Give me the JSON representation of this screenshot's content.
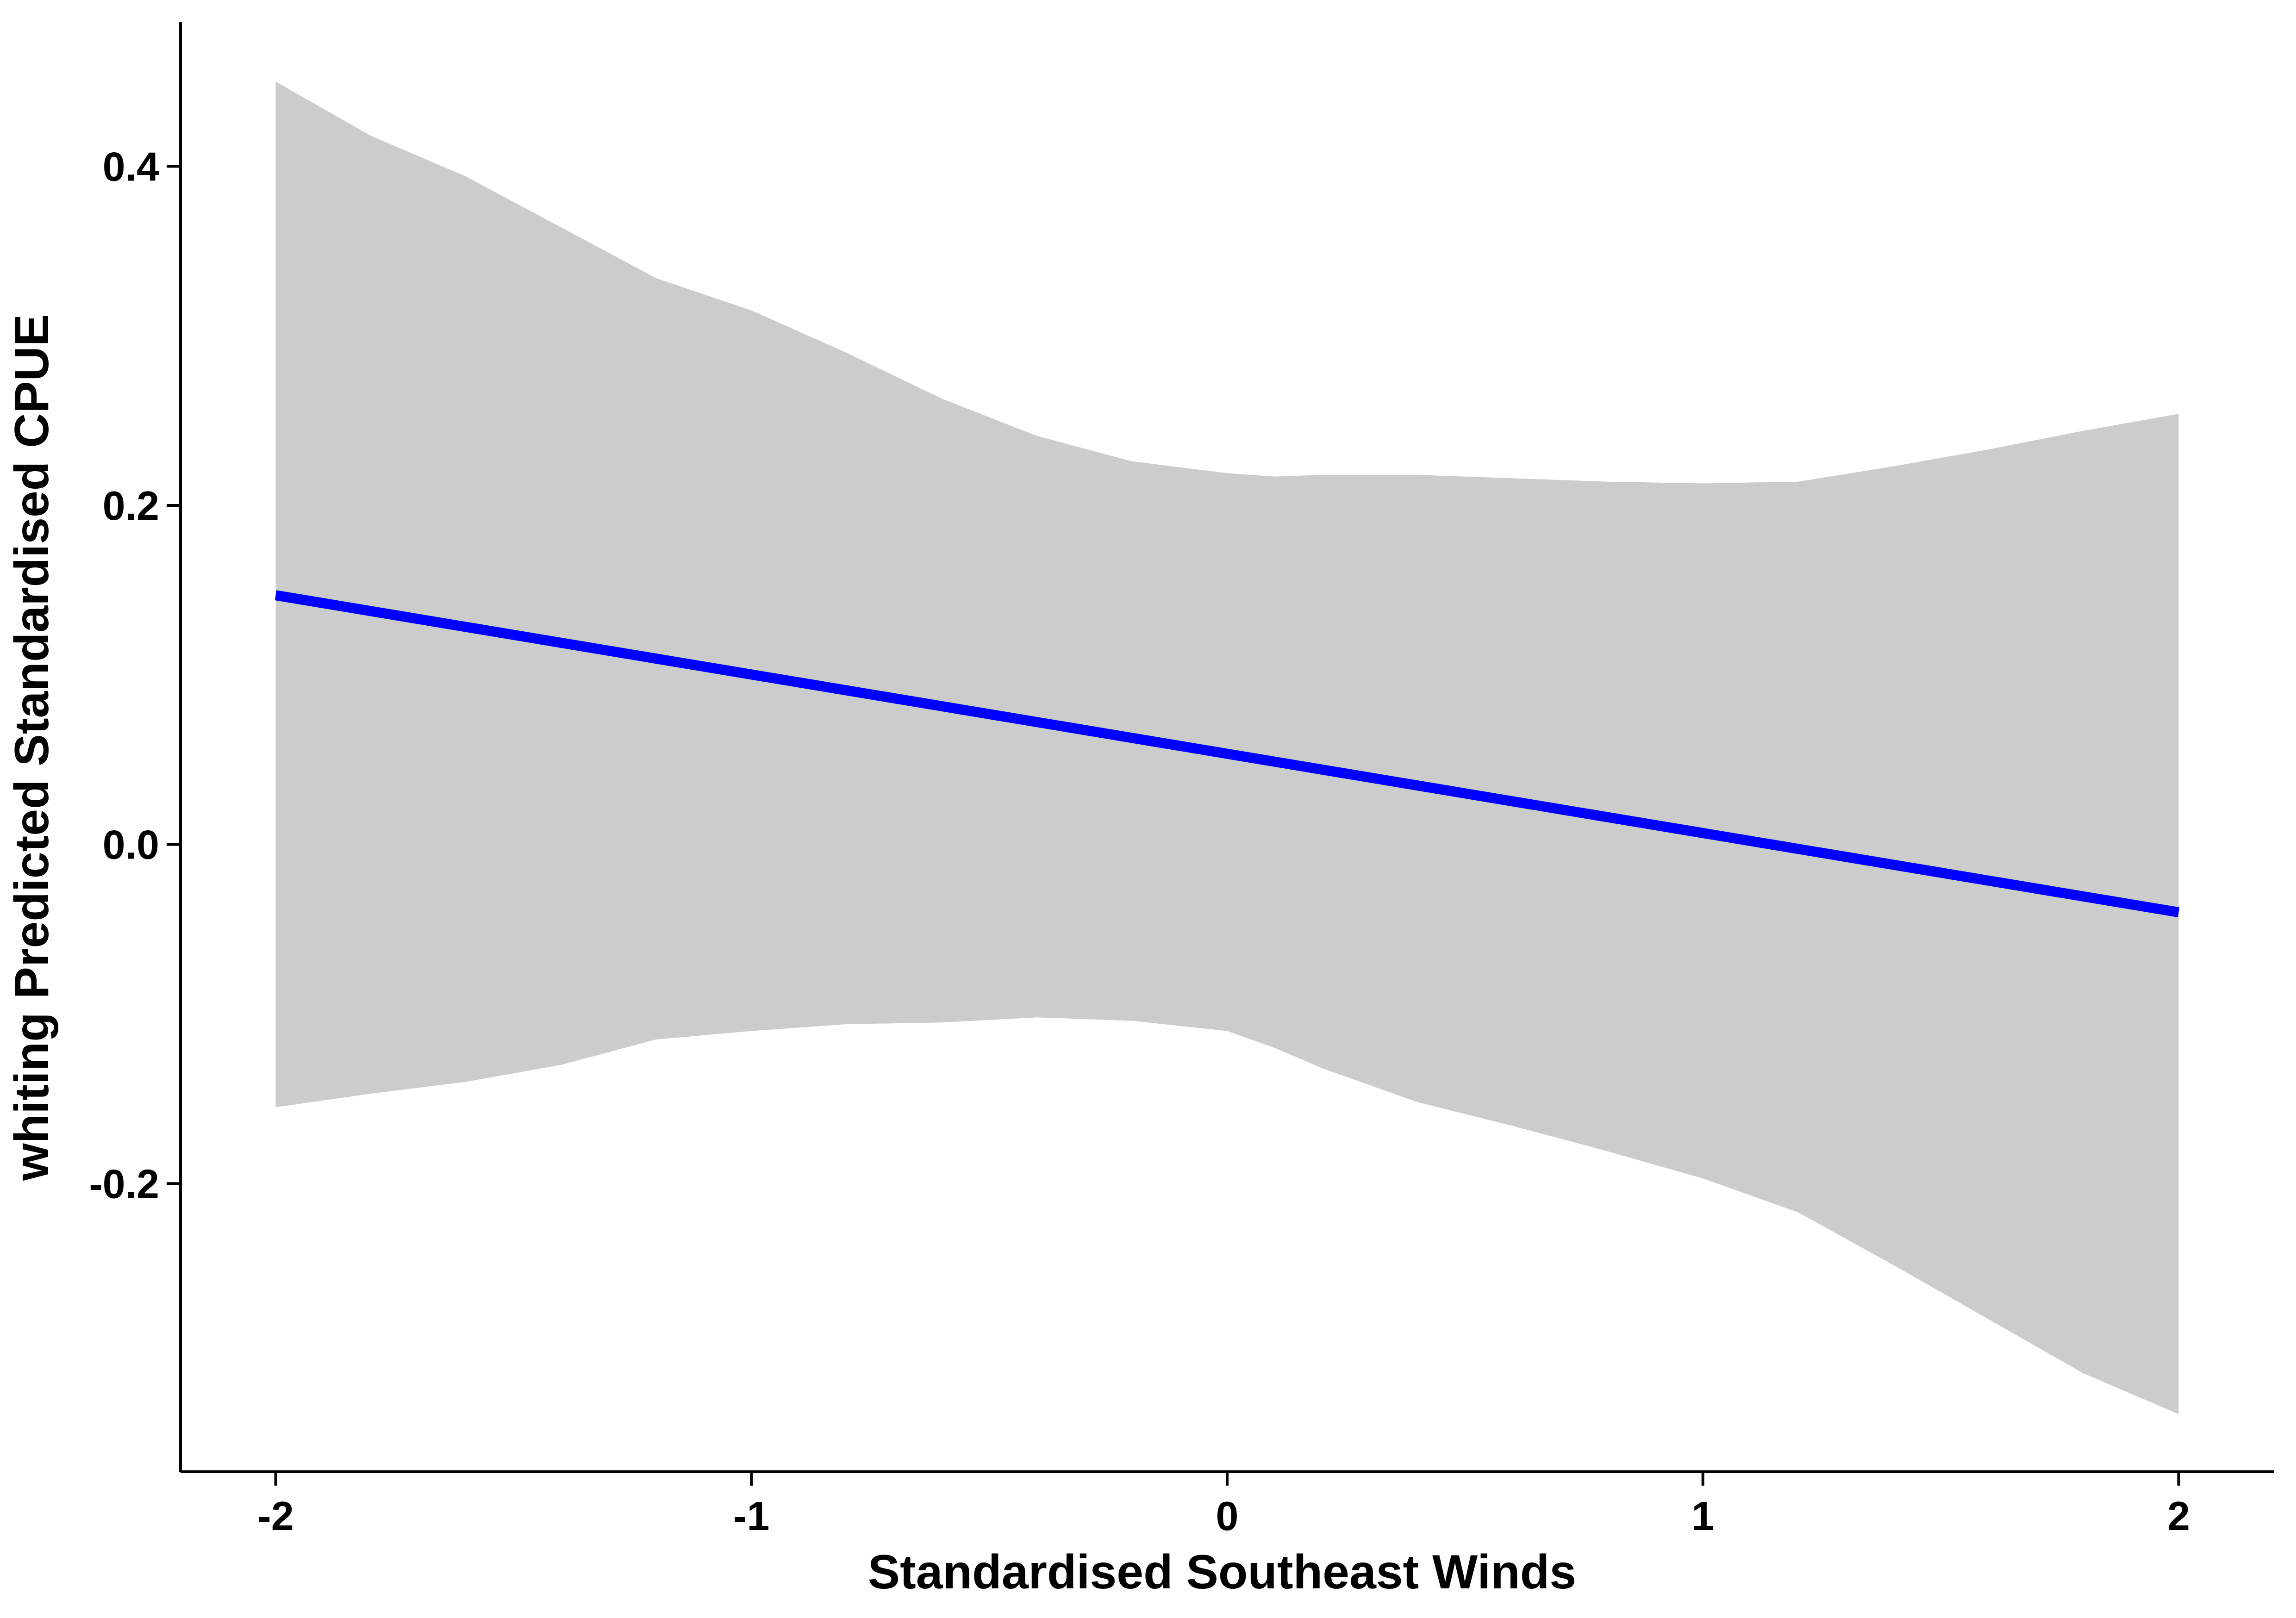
{
  "chart_data": {
    "type": "line",
    "xlabel": "Standardised Southeast Winds",
    "ylabel": "whiting Predicted Standardised CPUE",
    "xlim": [
      -2.2,
      2.2
    ],
    "ylim": [
      -0.37,
      0.485
    ],
    "x_ticks": [
      -2,
      -1,
      0,
      1,
      2
    ],
    "x_tick_labels": [
      "-2",
      "-1",
      "0",
      "1",
      "2"
    ],
    "y_ticks": [
      -0.2,
      0.0,
      0.2,
      0.4
    ],
    "y_tick_labels": [
      "-0.2",
      "0.0",
      "0.2",
      "0.4"
    ],
    "grid": false,
    "legend": "none",
    "series": [
      {
        "x": [
          -2,
          2
        ],
        "y": [
          0.147,
          -0.04
        ],
        "color": "#0000ff"
      }
    ],
    "confidence_band": {
      "color": "#cccccc",
      "x": [
        -2.0,
        -1.8,
        -1.6,
        -1.4,
        -1.2,
        -1.0,
        -0.8,
        -0.6,
        -0.4,
        -0.2,
        0.0,
        0.1,
        0.2,
        0.4,
        0.6,
        0.8,
        1.0,
        1.2,
        1.4,
        1.6,
        1.8,
        2.0
      ],
      "upper": [
        0.45,
        0.418,
        0.394,
        0.364,
        0.334,
        0.315,
        0.29,
        0.263,
        0.241,
        0.226,
        0.219,
        0.217,
        0.218,
        0.218,
        0.216,
        0.214,
        0.213,
        0.214,
        0.223,
        0.233,
        0.244,
        0.254
      ],
      "lower": [
        -0.155,
        -0.147,
        -0.14,
        -0.13,
        -0.115,
        -0.11,
        -0.106,
        -0.105,
        -0.102,
        -0.104,
        -0.11,
        -0.12,
        -0.132,
        -0.152,
        -0.166,
        -0.181,
        -0.197,
        -0.217,
        -0.248,
        -0.28,
        -0.312,
        -0.336
      ]
    }
  }
}
